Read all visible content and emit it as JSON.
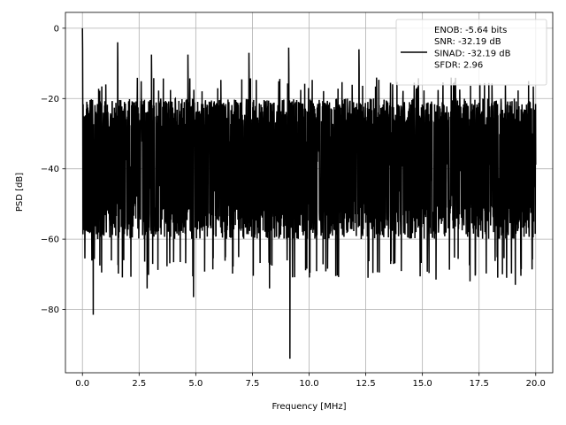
{
  "chart_data": {
    "type": "line",
    "title": "",
    "xlabel": "Frequency [MHz]",
    "ylabel": "PSD [dB]",
    "xlim": [
      -0.75,
      20.75
    ],
    "ylim": [
      -98,
      4.5
    ],
    "xticks": [
      0.0,
      2.5,
      5.0,
      7.5,
      10.0,
      12.5,
      15.0,
      17.5,
      20.0
    ],
    "xtick_labels": [
      "0.0",
      "2.5",
      "5.0",
      "7.5",
      "10.0",
      "12.5",
      "15.0",
      "17.5",
      "20.0"
    ],
    "yticks": [
      0,
      -20,
      -40,
      -60,
      -80
    ],
    "ytick_labels": [
      "0",
      "−20",
      "−40",
      "−60",
      "−80"
    ],
    "grid": true,
    "legend_position": "top-right",
    "series": [
      {
        "name": "ENOB: -5.64 bits\nSNR: -32.19 dB\nSINAD: -32.19 dB\nSFDR: 2.96",
        "color": "#000000",
        "x_range": [
          0,
          20
        ],
        "noise_ceiling_db": -20,
        "noise_floor_db": -65,
        "peaks": [
          {
            "x": 0.0,
            "y": 0
          },
          {
            "x": 1.55,
            "y": -4
          },
          {
            "x": 3.05,
            "y": -7.5
          },
          {
            "x": 4.65,
            "y": -7.5
          },
          {
            "x": 7.35,
            "y": -7
          },
          {
            "x": 9.1,
            "y": -5.5
          },
          {
            "x": 12.2,
            "y": -6
          }
        ],
        "dips": [
          {
            "x": 0.48,
            "y": -81.5
          },
          {
            "x": 2.85,
            "y": -74
          },
          {
            "x": 4.9,
            "y": -76.5
          },
          {
            "x": 8.25,
            "y": -74
          },
          {
            "x": 9.15,
            "y": -94
          },
          {
            "x": 12.6,
            "y": -71
          },
          {
            "x": 15.6,
            "y": -71.5
          },
          {
            "x": 17.1,
            "y": -72
          },
          {
            "x": 19.1,
            "y": -73
          }
        ]
      }
    ]
  }
}
